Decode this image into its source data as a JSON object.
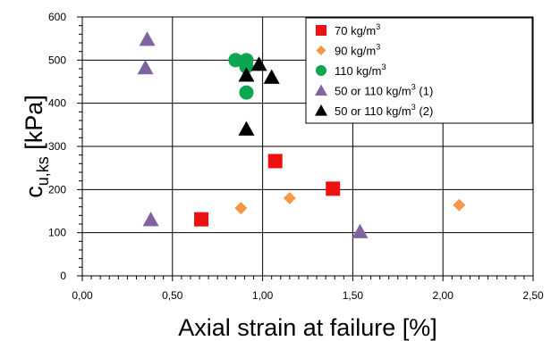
{
  "chart_data": {
    "type": "scatter",
    "xlabel": "Axial strain at failure [%]",
    "ylabel": "c",
    "ylabel_sub": "u,ks",
    "ylabel_unit": " [kPa]",
    "xlim": [
      0,
      2.5
    ],
    "ylim": [
      0,
      600
    ],
    "x_ticks": [
      "0,00",
      "0,50",
      "1,00",
      "1,50",
      "2,00",
      "2,50"
    ],
    "y_ticks": [
      "0",
      "100",
      "200",
      "300",
      "400",
      "500",
      "600"
    ],
    "grid": true,
    "legend_position": "top-right",
    "series": [
      {
        "name": "70 kg/m",
        "name_sup": "3",
        "marker": "square",
        "color": "#ee1111",
        "points": [
          [
            0.66,
            131
          ],
          [
            1.07,
            266
          ],
          [
            1.39,
            202
          ]
        ]
      },
      {
        "name": "90 kg/m",
        "name_sup": "3",
        "marker": "diamond",
        "color": "#f79646",
        "points": [
          [
            0.88,
            157
          ],
          [
            1.15,
            180
          ],
          [
            2.09,
            164
          ]
        ]
      },
      {
        "name": "110 kg/m",
        "name_sup": "3",
        "marker": "circle",
        "color": "#0aa651",
        "points": [
          [
            0.85,
            500
          ],
          [
            0.91,
            500
          ],
          [
            0.91,
            485
          ],
          [
            0.91,
            425
          ]
        ]
      },
      {
        "name": "50 or 110 kg/m",
        "name_sup": "3",
        "name_suffix": " (1)",
        "marker": "triangle",
        "color": "#8064a2",
        "points": [
          [
            0.36,
            548
          ],
          [
            0.35,
            482
          ],
          [
            0.38,
            130
          ],
          [
            1.54,
            102
          ]
        ]
      },
      {
        "name": "50 or 110 kg/m",
        "name_sup": "3",
        "name_suffix": " (2)",
        "marker": "triangle",
        "color": "#000000",
        "points": [
          [
            0.91,
            465
          ],
          [
            0.98,
            490
          ],
          [
            1.05,
            460
          ],
          [
            0.91,
            340
          ]
        ]
      }
    ]
  }
}
